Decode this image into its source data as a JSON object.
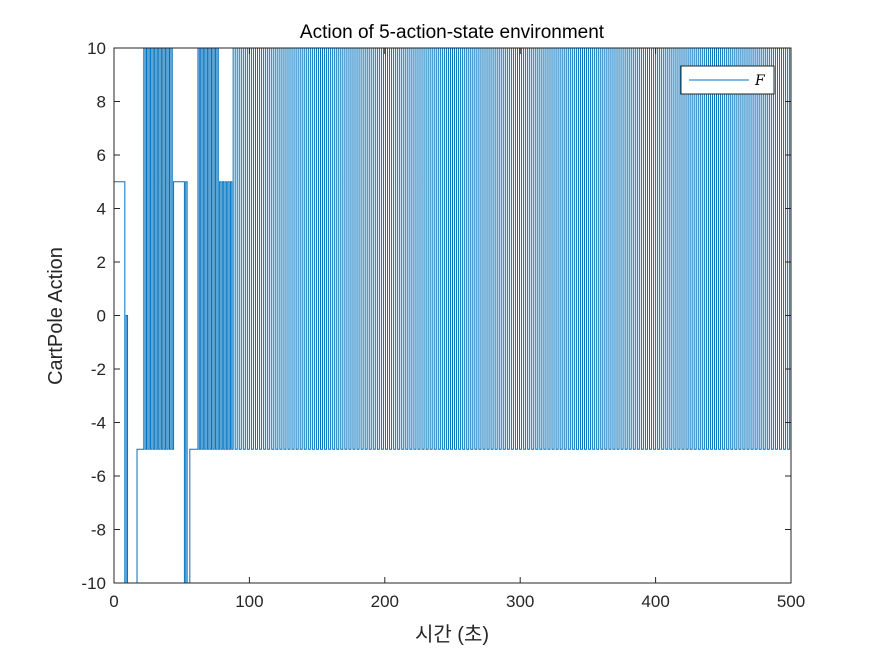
{
  "chart_data": {
    "type": "line",
    "title": "Action of 5-action-state environment",
    "xlabel": "시간 (초)",
    "ylabel": "CartPole Action",
    "xlim": [
      0,
      500
    ],
    "ylim": [
      -10,
      10
    ],
    "xticks": [
      "0",
      "100",
      "200",
      "300",
      "400",
      "500"
    ],
    "yticks": [
      "-10",
      "-8",
      "-6",
      "-4",
      "-2",
      "0",
      "2",
      "4",
      "6",
      "8",
      "10"
    ],
    "grid": false,
    "legend_position": "top-right",
    "series": [
      {
        "name": "F",
        "color": "#0072BD",
        "segments": [
          {
            "from": 0,
            "to": 8,
            "value": 5
          },
          {
            "from": 8,
            "to": 9,
            "value": -10
          },
          {
            "from": 9,
            "to": 10,
            "value": 0
          },
          {
            "from": 10,
            "to": 17,
            "value": -10
          },
          {
            "from": 17,
            "to": 22,
            "value": -5
          },
          {
            "from": 22,
            "to": 44,
            "alternating": [
              10,
              -5
            ],
            "period": 2
          },
          {
            "from": 44,
            "to": 52,
            "value": 5
          },
          {
            "from": 52,
            "to": 53,
            "value": -10
          },
          {
            "from": 53,
            "to": 54,
            "value": 5
          },
          {
            "from": 54,
            "to": 56,
            "value": -10
          },
          {
            "from": 56,
            "to": 62,
            "value": -5
          },
          {
            "from": 62,
            "to": 78,
            "alternating": [
              10,
              -5
            ],
            "period": 2
          },
          {
            "from": 78,
            "to": 88,
            "alternating": [
              5,
              -5
            ],
            "period": 2
          },
          {
            "from": 88,
            "to": 500,
            "alternating": [
              10,
              -5
            ],
            "period": 3
          }
        ]
      }
    ]
  }
}
